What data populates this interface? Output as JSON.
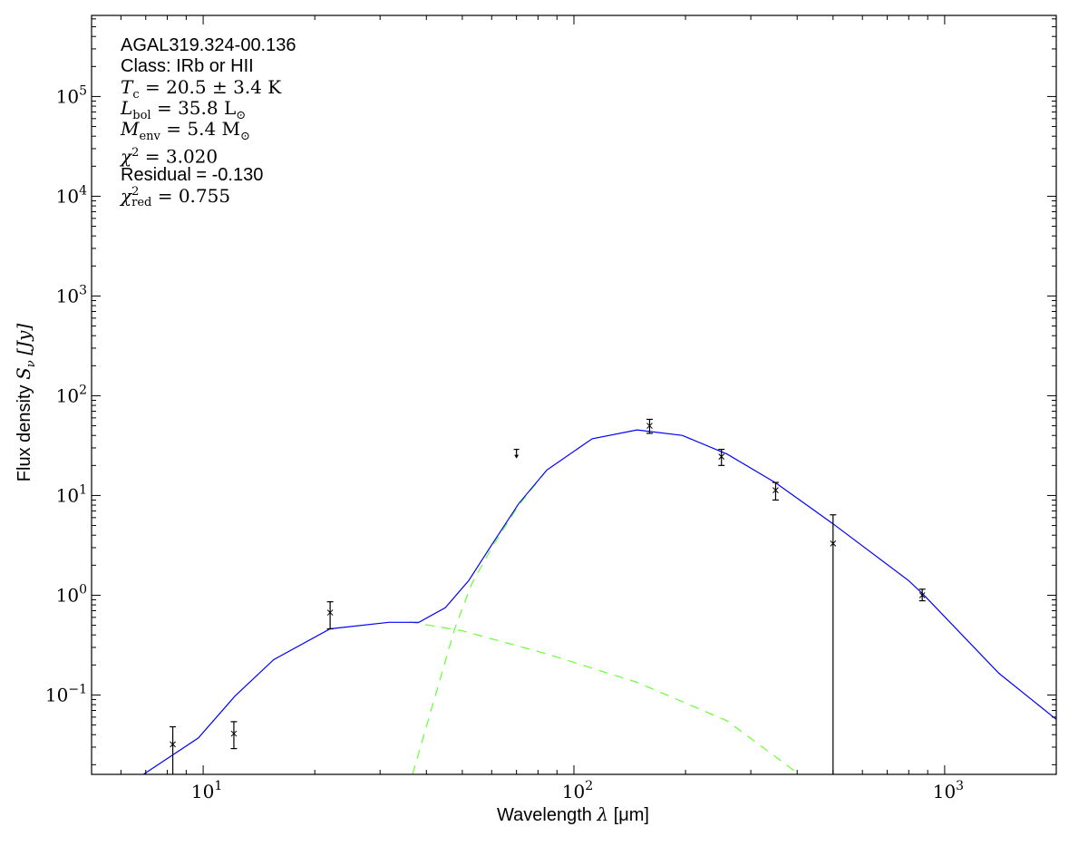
{
  "chart_data": {
    "type": "scatter",
    "xlabel": {
      "text": "Wavelength",
      "symbol": "λ",
      "unit": "[μm]"
    },
    "ylabel": {
      "text": "Flux density",
      "symbol": "S",
      "sub": "ν",
      "unit": "[Jy]"
    },
    "xscale": "log",
    "yscale": "log",
    "xlim": [
      5,
      2000
    ],
    "ylim": [
      0.016,
      650000
    ],
    "grid": false,
    "x_ticks": [
      {
        "base": "10",
        "exp": "1",
        "value": 10
      },
      {
        "base": "10",
        "exp": "2",
        "value": 100
      },
      {
        "base": "10",
        "exp": "3",
        "value": 1000
      }
    ],
    "y_ticks": [
      {
        "base": "10",
        "exp": "−1",
        "value": 0.1
      },
      {
        "base": "10",
        "exp": "0",
        "value": 1
      },
      {
        "base": "10",
        "exp": "1",
        "value": 10
      },
      {
        "base": "10",
        "exp": "2",
        "value": 100
      },
      {
        "base": "10",
        "exp": "3",
        "value": 1000
      },
      {
        "base": "10",
        "exp": "4",
        "value": 10000
      },
      {
        "base": "10",
        "exp": "5",
        "value": 100000
      }
    ],
    "points": [
      {
        "x": 8.28,
        "y": 0.032,
        "err_low": 0.001,
        "err_high": 0.048
      },
      {
        "x": 12.1,
        "y": 0.041,
        "err_low": 0.029,
        "err_high": 0.054
      },
      {
        "x": 22,
        "y": 0.67,
        "err_low": 0.46,
        "err_high": 0.86
      },
      {
        "x": 70,
        "y": 29,
        "upper_limit": true
      },
      {
        "x": 160,
        "y": 50,
        "err_low": 42,
        "err_high": 58
      },
      {
        "x": 250,
        "y": 24.5,
        "err_low": 20,
        "err_high": 29
      },
      {
        "x": 350,
        "y": 11.3,
        "err_low": 9,
        "err_high": 13.5
      },
      {
        "x": 500,
        "y": 3.3,
        "err_low": 0.001,
        "err_high": 6.4
      },
      {
        "x": 870,
        "y": 1.0,
        "err_low": 0.88,
        "err_high": 1.15
      }
    ],
    "model_total": {
      "color": "#0000ff",
      "style": "solid",
      "x": [
        6.9,
        9.7,
        12.2,
        15.5,
        22,
        31.7,
        38.2,
        45,
        52,
        60,
        71,
        84.5,
        112,
        148,
        196,
        259,
        350,
        500,
        800,
        880,
        1400,
        2023
      ],
      "y": [
        0.016,
        0.037,
        0.098,
        0.226,
        0.46,
        0.535,
        0.535,
        0.75,
        1.4,
        3.2,
        8.3,
        18,
        37,
        45.5,
        40,
        26,
        13.4,
        5.2,
        1.4,
        1.0,
        0.165,
        0.055
      ]
    },
    "model_warm": {
      "color": "#66ff33",
      "style": "dashed",
      "x": [
        36,
        50,
        84,
        148,
        259,
        405
      ],
      "y": [
        0.54,
        0.44,
        0.26,
        0.134,
        0.055,
        0.016
      ]
    },
    "model_cold": {
      "color": "#66ff33",
      "style": "dashed",
      "x": [
        36.7,
        42,
        47.7,
        53,
        60,
        71,
        84.5
      ],
      "y": [
        0.016,
        0.09,
        0.46,
        1.3,
        3.0,
        8.0,
        18
      ]
    }
  },
  "annotation": {
    "source": "AGAL319.324-00.136",
    "class": "Class: IRb or HII",
    "tc": {
      "sym": "T",
      "sub": "c",
      "rest": " = 20.5 ± 3.4 K"
    },
    "lbol": {
      "sym": "L",
      "sub": "bol",
      "rest": " = 35.8 L",
      "sub2": "⊙"
    },
    "menv": {
      "sym": "M",
      "sub": "env",
      "rest": " = 5.4 M",
      "sub2": "⊙"
    },
    "chi2": {
      "sym": "χ",
      "sup": "2",
      "rest": " = 3.020"
    },
    "residual": "Residual = -0.130",
    "chi2red": {
      "sym": "χ",
      "sup": "2",
      "sub": "red",
      "rest": " = 0.755"
    }
  }
}
